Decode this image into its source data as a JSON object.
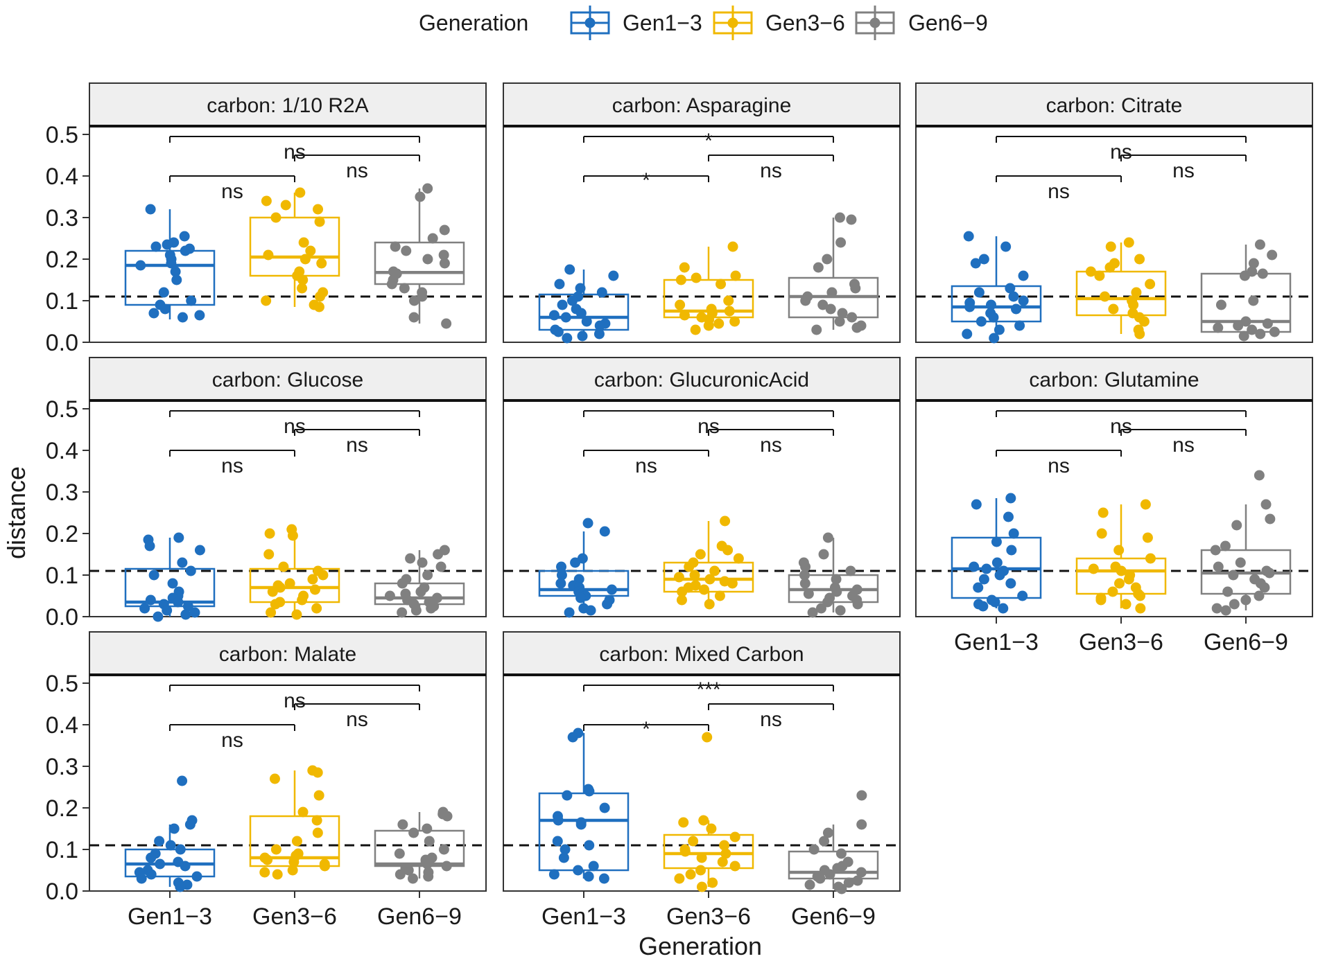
{
  "chart_data": {
    "type": "boxplot",
    "facet_variable": "carbon",
    "xlabel": "Generation",
    "ylabel": "distance",
    "ylim": [
      0,
      0.52
    ],
    "yticks": [
      "0.0",
      "0.1",
      "0.2",
      "0.3",
      "0.4",
      "0.5"
    ],
    "ytick_values": [
      0,
      0.1,
      0.2,
      0.3,
      0.4,
      0.5
    ],
    "reference_line": 0.11,
    "categories": [
      "Gen1−3",
      "Gen3−6",
      "Gen6−9"
    ],
    "legend": {
      "title": "Generation",
      "position": "top",
      "entries": [
        "Gen1−3",
        "Gen3−6",
        "Gen6−9"
      ]
    },
    "colors": {
      "Gen1-3": "#1f6fbf",
      "Gen3-6": "#f0b800",
      "Gen6-9": "#808080"
    },
    "panels": [
      {
        "strip": "carbon: 1/10 R2A",
        "boxes": [
          {
            "q1": 0.09,
            "median": 0.185,
            "q3": 0.22,
            "whisker_low": 0.055,
            "whisker_high": 0.32
          },
          {
            "q1": 0.16,
            "median": 0.205,
            "q3": 0.3,
            "whisker_low": 0.085,
            "whisker_high": 0.36
          },
          {
            "q1": 0.14,
            "median": 0.168,
            "q3": 0.24,
            "whisker_low": 0.045,
            "whisker_high": 0.37
          }
        ],
        "points": [
          [
            0.32,
            0.255,
            0.24,
            0.235,
            0.23,
            0.225,
            0.22,
            0.21,
            0.2,
            0.19,
            0.185,
            0.17,
            0.15,
            0.12,
            0.1,
            0.09,
            0.08,
            0.07,
            0.065,
            0.06
          ],
          [
            0.36,
            0.34,
            0.33,
            0.32,
            0.3,
            0.29,
            0.24,
            0.22,
            0.21,
            0.2,
            0.19,
            0.17,
            0.16,
            0.15,
            0.13,
            0.12,
            0.11,
            0.1,
            0.09,
            0.085
          ],
          [
            0.37,
            0.35,
            0.27,
            0.25,
            0.23,
            0.22,
            0.21,
            0.2,
            0.19,
            0.17,
            0.165,
            0.15,
            0.14,
            0.13,
            0.12,
            0.11,
            0.1,
            0.06,
            0.045
          ]
        ],
        "comparisons": [
          {
            "from": 0,
            "to": 1,
            "y": 0.4,
            "label": "ns"
          },
          {
            "from": 1,
            "to": 2,
            "y": 0.45,
            "label": "ns"
          },
          {
            "from": 0,
            "to": 2,
            "y": 0.495,
            "label": "ns"
          }
        ]
      },
      {
        "strip": "carbon: Asparagine",
        "boxes": [
          {
            "q1": 0.03,
            "median": 0.06,
            "q3": 0.115,
            "whisker_low": 0.01,
            "whisker_high": 0.175
          },
          {
            "q1": 0.06,
            "median": 0.075,
            "q3": 0.15,
            "whisker_low": 0.03,
            "whisker_high": 0.23
          },
          {
            "q1": 0.06,
            "median": 0.11,
            "q3": 0.155,
            "whisker_low": 0.03,
            "whisker_high": 0.3
          }
        ],
        "points": [
          [
            0.175,
            0.16,
            0.14,
            0.13,
            0.12,
            0.11,
            0.1,
            0.09,
            0.08,
            0.07,
            0.065,
            0.06,
            0.05,
            0.045,
            0.04,
            0.03,
            0.025,
            0.02,
            0.015,
            0.01
          ],
          [
            0.23,
            0.18,
            0.16,
            0.155,
            0.15,
            0.14,
            0.1,
            0.09,
            0.08,
            0.075,
            0.07,
            0.065,
            0.06,
            0.055,
            0.05,
            0.045,
            0.04,
            0.03
          ],
          [
            0.3,
            0.295,
            0.24,
            0.2,
            0.18,
            0.14,
            0.13,
            0.12,
            0.11,
            0.1,
            0.09,
            0.08,
            0.07,
            0.06,
            0.05,
            0.04,
            0.035,
            0.03
          ]
        ],
        "comparisons": [
          {
            "from": 0,
            "to": 1,
            "y": 0.4,
            "label": "*"
          },
          {
            "from": 1,
            "to": 2,
            "y": 0.45,
            "label": "ns"
          },
          {
            "from": 0,
            "to": 2,
            "y": 0.495,
            "label": "*"
          }
        ]
      },
      {
        "strip": "carbon: Citrate",
        "boxes": [
          {
            "q1": 0.05,
            "median": 0.085,
            "q3": 0.135,
            "whisker_low": 0.01,
            "whisker_high": 0.255
          },
          {
            "q1": 0.065,
            "median": 0.105,
            "q3": 0.17,
            "whisker_low": 0.02,
            "whisker_high": 0.24
          },
          {
            "q1": 0.025,
            "median": 0.05,
            "q3": 0.165,
            "whisker_low": 0.015,
            "whisker_high": 0.235
          }
        ],
        "points": [
          [
            0.255,
            0.23,
            0.2,
            0.19,
            0.16,
            0.13,
            0.12,
            0.11,
            0.1,
            0.095,
            0.09,
            0.085,
            0.08,
            0.07,
            0.06,
            0.05,
            0.04,
            0.03,
            0.02,
            0.01
          ],
          [
            0.24,
            0.23,
            0.2,
            0.19,
            0.18,
            0.17,
            0.16,
            0.14,
            0.12,
            0.11,
            0.1,
            0.09,
            0.08,
            0.07,
            0.06,
            0.05,
            0.03,
            0.02
          ],
          [
            0.235,
            0.21,
            0.19,
            0.17,
            0.165,
            0.16,
            0.1,
            0.09,
            0.05,
            0.045,
            0.04,
            0.035,
            0.03,
            0.025,
            0.02,
            0.015
          ]
        ],
        "comparisons": [
          {
            "from": 0,
            "to": 1,
            "y": 0.4,
            "label": "ns"
          },
          {
            "from": 1,
            "to": 2,
            "y": 0.45,
            "label": "ns"
          },
          {
            "from": 0,
            "to": 2,
            "y": 0.495,
            "label": "ns"
          }
        ]
      },
      {
        "strip": "carbon: Glucose",
        "boxes": [
          {
            "q1": 0.025,
            "median": 0.035,
            "q3": 0.115,
            "whisker_low": 0.0,
            "whisker_high": 0.19
          },
          {
            "q1": 0.035,
            "median": 0.07,
            "q3": 0.115,
            "whisker_low": 0.005,
            "whisker_high": 0.21
          },
          {
            "q1": 0.03,
            "median": 0.045,
            "q3": 0.08,
            "whisker_low": 0.01,
            "whisker_high": 0.16
          }
        ],
        "points": [
          [
            0.19,
            0.185,
            0.17,
            0.16,
            0.13,
            0.11,
            0.1,
            0.08,
            0.06,
            0.05,
            0.045,
            0.04,
            0.035,
            0.03,
            0.025,
            0.02,
            0.015,
            0.01,
            0.005,
            0.0
          ],
          [
            0.21,
            0.2,
            0.195,
            0.15,
            0.12,
            0.11,
            0.1,
            0.09,
            0.08,
            0.075,
            0.07,
            0.065,
            0.06,
            0.05,
            0.04,
            0.035,
            0.03,
            0.02,
            0.01,
            0.005
          ],
          [
            0.16,
            0.15,
            0.14,
            0.13,
            0.12,
            0.1,
            0.09,
            0.08,
            0.07,
            0.06,
            0.055,
            0.05,
            0.045,
            0.04,
            0.035,
            0.03,
            0.025,
            0.02,
            0.015,
            0.01
          ]
        ],
        "comparisons": [
          {
            "from": 0,
            "to": 1,
            "y": 0.4,
            "label": "ns"
          },
          {
            "from": 1,
            "to": 2,
            "y": 0.45,
            "label": "ns"
          },
          {
            "from": 0,
            "to": 2,
            "y": 0.495,
            "label": "ns"
          }
        ]
      },
      {
        "strip": "carbon: GlucuronicAcid",
        "boxes": [
          {
            "q1": 0.05,
            "median": 0.065,
            "q3": 0.11,
            "whisker_low": 0.01,
            "whisker_high": 0.205
          },
          {
            "q1": 0.06,
            "median": 0.09,
            "q3": 0.13,
            "whisker_low": 0.03,
            "whisker_high": 0.23
          },
          {
            "q1": 0.035,
            "median": 0.065,
            "q3": 0.1,
            "whisker_low": 0.01,
            "whisker_high": 0.19
          }
        ],
        "points": [
          [
            0.225,
            0.205,
            0.14,
            0.13,
            0.12,
            0.1,
            0.09,
            0.08,
            0.075,
            0.07,
            0.065,
            0.06,
            0.055,
            0.05,
            0.045,
            0.04,
            0.03,
            0.02,
            0.015,
            0.01
          ],
          [
            0.23,
            0.17,
            0.16,
            0.15,
            0.14,
            0.13,
            0.12,
            0.11,
            0.1,
            0.095,
            0.09,
            0.085,
            0.08,
            0.075,
            0.07,
            0.065,
            0.06,
            0.05,
            0.04,
            0.03
          ],
          [
            0.19,
            0.15,
            0.13,
            0.12,
            0.11,
            0.1,
            0.09,
            0.08,
            0.07,
            0.065,
            0.06,
            0.055,
            0.05,
            0.045,
            0.04,
            0.035,
            0.03,
            0.02,
            0.015,
            0.01
          ]
        ],
        "comparisons": [
          {
            "from": 0,
            "to": 1,
            "y": 0.4,
            "label": "ns"
          },
          {
            "from": 1,
            "to": 2,
            "y": 0.45,
            "label": "ns"
          },
          {
            "from": 0,
            "to": 2,
            "y": 0.495,
            "label": "ns"
          }
        ]
      },
      {
        "strip": "carbon: Glutamine",
        "boxes": [
          {
            "q1": 0.045,
            "median": 0.115,
            "q3": 0.19,
            "whisker_low": 0.02,
            "whisker_high": 0.285
          },
          {
            "q1": 0.055,
            "median": 0.11,
            "q3": 0.14,
            "whisker_low": 0.02,
            "whisker_high": 0.27
          },
          {
            "q1": 0.055,
            "median": 0.105,
            "q3": 0.16,
            "whisker_low": 0.015,
            "whisker_high": 0.27
          }
        ],
        "points": [
          [
            0.285,
            0.27,
            0.24,
            0.2,
            0.18,
            0.16,
            0.13,
            0.12,
            0.115,
            0.11,
            0.1,
            0.09,
            0.08,
            0.07,
            0.05,
            0.04,
            0.035,
            0.03,
            0.025,
            0.02
          ],
          [
            0.27,
            0.25,
            0.2,
            0.19,
            0.16,
            0.14,
            0.12,
            0.115,
            0.11,
            0.1,
            0.09,
            0.08,
            0.07,
            0.06,
            0.055,
            0.05,
            0.045,
            0.04,
            0.03,
            0.02
          ],
          [
            0.34,
            0.27,
            0.235,
            0.22,
            0.17,
            0.16,
            0.13,
            0.12,
            0.11,
            0.105,
            0.1,
            0.09,
            0.08,
            0.07,
            0.06,
            0.05,
            0.04,
            0.03,
            0.02,
            0.015
          ]
        ],
        "comparisons": [
          {
            "from": 0,
            "to": 1,
            "y": 0.4,
            "label": "ns"
          },
          {
            "from": 1,
            "to": 2,
            "y": 0.45,
            "label": "ns"
          },
          {
            "from": 0,
            "to": 2,
            "y": 0.495,
            "label": "ns"
          }
        ]
      },
      {
        "strip": "carbon: Malate",
        "boxes": [
          {
            "q1": 0.035,
            "median": 0.065,
            "q3": 0.1,
            "whisker_low": 0.01,
            "whisker_high": 0.16
          },
          {
            "q1": 0.06,
            "median": 0.08,
            "q3": 0.18,
            "whisker_low": 0.04,
            "whisker_high": 0.29
          },
          {
            "q1": 0.06,
            "median": 0.065,
            "q3": 0.145,
            "whisker_low": 0.03,
            "whisker_high": 0.19
          }
        ],
        "points": [
          [
            0.265,
            0.17,
            0.16,
            0.15,
            0.12,
            0.11,
            0.1,
            0.09,
            0.08,
            0.07,
            0.065,
            0.06,
            0.05,
            0.045,
            0.04,
            0.035,
            0.03,
            0.02,
            0.015,
            0.01
          ],
          [
            0.29,
            0.285,
            0.27,
            0.23,
            0.19,
            0.17,
            0.14,
            0.12,
            0.1,
            0.09,
            0.085,
            0.08,
            0.075,
            0.07,
            0.065,
            0.06,
            0.05,
            0.045,
            0.04
          ],
          [
            0.19,
            0.185,
            0.18,
            0.16,
            0.15,
            0.14,
            0.12,
            0.1,
            0.09,
            0.08,
            0.075,
            0.07,
            0.065,
            0.06,
            0.055,
            0.05,
            0.045,
            0.04,
            0.035,
            0.03
          ]
        ],
        "comparisons": [
          {
            "from": 0,
            "to": 1,
            "y": 0.4,
            "label": "ns"
          },
          {
            "from": 1,
            "to": 2,
            "y": 0.45,
            "label": "ns"
          },
          {
            "from": 0,
            "to": 2,
            "y": 0.495,
            "label": "ns"
          }
        ]
      },
      {
        "strip": "carbon: Mixed Carbon",
        "boxes": [
          {
            "q1": 0.05,
            "median": 0.17,
            "q3": 0.235,
            "whisker_low": 0.03,
            "whisker_high": 0.38
          },
          {
            "q1": 0.055,
            "median": 0.09,
            "q3": 0.135,
            "whisker_low": 0.01,
            "whisker_high": 0.17
          },
          {
            "q1": 0.03,
            "median": 0.045,
            "q3": 0.095,
            "whisker_low": 0.005,
            "whisker_high": 0.16
          }
        ],
        "points": [
          [
            0.38,
            0.37,
            0.245,
            0.24,
            0.23,
            0.2,
            0.18,
            0.17,
            0.165,
            0.16,
            0.12,
            0.11,
            0.1,
            0.08,
            0.06,
            0.05,
            0.04,
            0.035,
            0.03
          ],
          [
            0.37,
            0.17,
            0.165,
            0.15,
            0.13,
            0.12,
            0.11,
            0.1,
            0.095,
            0.09,
            0.08,
            0.07,
            0.06,
            0.05,
            0.04,
            0.03,
            0.02,
            0.01
          ],
          [
            0.23,
            0.16,
            0.14,
            0.12,
            0.1,
            0.09,
            0.07,
            0.06,
            0.055,
            0.05,
            0.045,
            0.04,
            0.035,
            0.03,
            0.025,
            0.02,
            0.015,
            0.01,
            0.005
          ]
        ],
        "comparisons": [
          {
            "from": 0,
            "to": 1,
            "y": 0.4,
            "label": "*"
          },
          {
            "from": 1,
            "to": 2,
            "y": 0.45,
            "label": "ns"
          },
          {
            "from": 0,
            "to": 2,
            "y": 0.495,
            "label": "***"
          }
        ]
      }
    ]
  }
}
